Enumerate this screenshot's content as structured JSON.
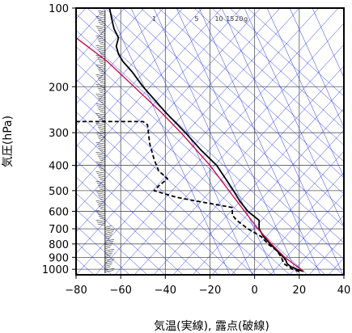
{
  "chart_data": {
    "type": "line",
    "title": "",
    "xlabel": "気温(実線), 露点(破線)",
    "ylabel": "気圧(hPa)",
    "x_unit": "°C",
    "y_unit": "hPa",
    "y_scale": "log",
    "y_inverted": true,
    "xlim": [
      -80,
      40
    ],
    "ylim": [
      1050,
      100
    ],
    "x_ticks": [
      -80,
      -60,
      -40,
      -20,
      0,
      20,
      40
    ],
    "y_ticks": [
      100,
      200,
      300,
      400,
      500,
      600,
      700,
      800,
      900,
      1000
    ],
    "x_tick_labels": [
      "−80",
      "−60",
      "−40",
      "−20",
      "0",
      "20",
      "40"
    ],
    "y_tick_labels": [
      "100",
      "200",
      "300",
      "400",
      "500",
      "600",
      "700",
      "800",
      "900",
      "1000"
    ],
    "mixing_ratio_labels": [
      "1",
      "5",
      "10",
      "15",
      "20",
      "g"
    ],
    "grid": true,
    "legend": "none",
    "colors": {
      "temperature": "#000000",
      "dewpoint": "#000000",
      "parcel": "#cc0044",
      "isotherms_adiabats": "#2233ee",
      "grid": "#555555"
    },
    "series": [
      {
        "role": "temperature",
        "style": "solid",
        "points": [
          {
            "p": 1020,
            "t": 22
          },
          {
            "p": 1000,
            "t": 19
          },
          {
            "p": 975,
            "t": 16
          },
          {
            "p": 950,
            "t": 14.5
          },
          {
            "p": 925,
            "t": 14
          },
          {
            "p": 900,
            "t": 13
          },
          {
            "p": 850,
            "t": 10
          },
          {
            "p": 800,
            "t": 7
          },
          {
            "p": 750,
            "t": 4
          },
          {
            "p": 700,
            "t": 2
          },
          {
            "p": 650,
            "t": 2
          },
          {
            "p": 600,
            "t": -3
          },
          {
            "p": 550,
            "t": -6.5
          },
          {
            "p": 500,
            "t": -9.5
          },
          {
            "p": 450,
            "t": -13
          },
          {
            "p": 400,
            "t": -17
          },
          {
            "p": 350,
            "t": -24
          },
          {
            "p": 300,
            "t": -31
          },
          {
            "p": 250,
            "t": -40
          },
          {
            "p": 200,
            "t": -50
          },
          {
            "p": 175,
            "t": -55
          },
          {
            "p": 160,
            "t": -59
          },
          {
            "p": 150,
            "t": -61
          },
          {
            "p": 140,
            "t": -62
          },
          {
            "p": 130,
            "t": -61
          },
          {
            "p": 120,
            "t": -63
          },
          {
            "p": 110,
            "t": -64
          },
          {
            "p": 100,
            "t": -65
          }
        ]
      },
      {
        "role": "dewpoint",
        "style": "dashed",
        "points": [
          {
            "p": 1020,
            "t": 20
          },
          {
            "p": 1000,
            "t": 17
          },
          {
            "p": 950,
            "t": 13
          },
          {
            "p": 900,
            "t": 12
          },
          {
            "p": 850,
            "t": 10
          },
          {
            "p": 800,
            "t": 6
          },
          {
            "p": 750,
            "t": 3
          },
          {
            "p": 700,
            "t": -3
          },
          {
            "p": 650,
            "t": -8
          },
          {
            "p": 620,
            "t": -10
          },
          {
            "p": 580,
            "t": -10
          },
          {
            "p": 550,
            "t": -25
          },
          {
            "p": 530,
            "t": -35
          },
          {
            "p": 500,
            "t": -45
          },
          {
            "p": 480,
            "t": -43
          },
          {
            "p": 450,
            "t": -39
          },
          {
            "p": 420,
            "t": -43
          },
          {
            "p": 380,
            "t": -45
          },
          {
            "p": 330,
            "t": -47
          },
          {
            "p": 280,
            "t": -48
          },
          {
            "p": 272,
            "t": -50
          },
          {
            "p": 272,
            "t": -80
          }
        ]
      },
      {
        "role": "parcel",
        "style": "solid",
        "points": [
          {
            "p": 1020,
            "t": 22
          },
          {
            "p": 900,
            "t": 13.5
          },
          {
            "p": 800,
            "t": 7.5
          },
          {
            "p": 700,
            "t": 1.5
          },
          {
            "p": 600,
            "t": -4.5
          },
          {
            "p": 500,
            "t": -11.5
          },
          {
            "p": 400,
            "t": -20
          },
          {
            "p": 300,
            "t": -33
          },
          {
            "p": 250,
            "t": -42
          },
          {
            "p": 200,
            "t": -54
          },
          {
            "p": 160,
            "t": -66
          },
          {
            "p": 140,
            "t": -75
          },
          {
            "p": 130,
            "t": -80
          }
        ]
      }
    ],
    "wind_barbs_note": "wind profile column"
  }
}
